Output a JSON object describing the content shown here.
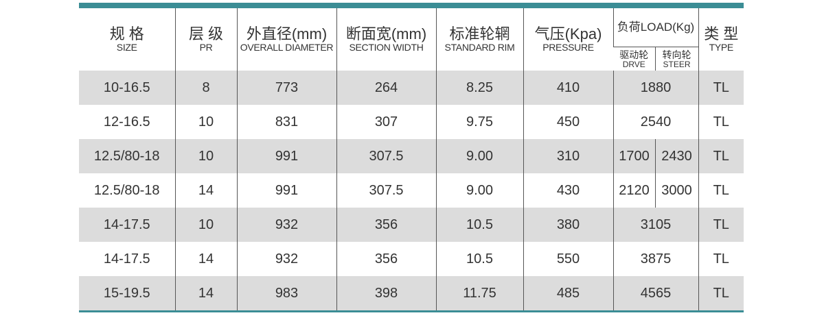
{
  "header": {
    "columns": [
      {
        "zh": "规 格",
        "en": "SIZE"
      },
      {
        "zh": "层 级",
        "en": "PR"
      },
      {
        "zh": "外直径(mm)",
        "en": "OVERALL DIAMETER"
      },
      {
        "zh": "断面宽(mm)",
        "en": "SECTION WIDTH"
      },
      {
        "zh": "标准轮辋",
        "en": "STANDARD RIM"
      },
      {
        "zh": "气压(Kpa)",
        "en": "PRESSURE"
      },
      {
        "zh": "负荷LOAD(Kg)",
        "sub": [
          {
            "zh": "驱动轮",
            "en": "DRVE"
          },
          {
            "zh": "转向轮",
            "en": "STEER"
          }
        ]
      },
      {
        "zh": "类 型",
        "en": "TYPE"
      }
    ]
  },
  "table": {
    "rows": [
      [
        "10-16.5",
        "8",
        "773",
        "264",
        "8.25",
        "410",
        [
          "1880"
        ],
        "TL"
      ],
      [
        "12-16.5",
        "10",
        "831",
        "307",
        "9.75",
        "450",
        [
          "2540"
        ],
        "TL"
      ],
      [
        "12.5/80-18",
        "10",
        "991",
        "307.5",
        "9.00",
        "310",
        [
          "1700",
          "2430"
        ],
        "TL"
      ],
      [
        "12.5/80-18",
        "14",
        "991",
        "307.5",
        "9.00",
        "430",
        [
          "2120",
          "3000"
        ],
        "TL"
      ],
      [
        "14-17.5",
        "10",
        "932",
        "356",
        "10.5",
        "380",
        [
          "3105"
        ],
        "TL"
      ],
      [
        "14-17.5",
        "14",
        "932",
        "356",
        "10.5",
        "550",
        [
          "3875"
        ],
        "TL"
      ],
      [
        "15-19.5",
        "14",
        "983",
        "398",
        "11.75",
        "485",
        [
          "4565"
        ],
        "TL"
      ]
    ]
  }
}
